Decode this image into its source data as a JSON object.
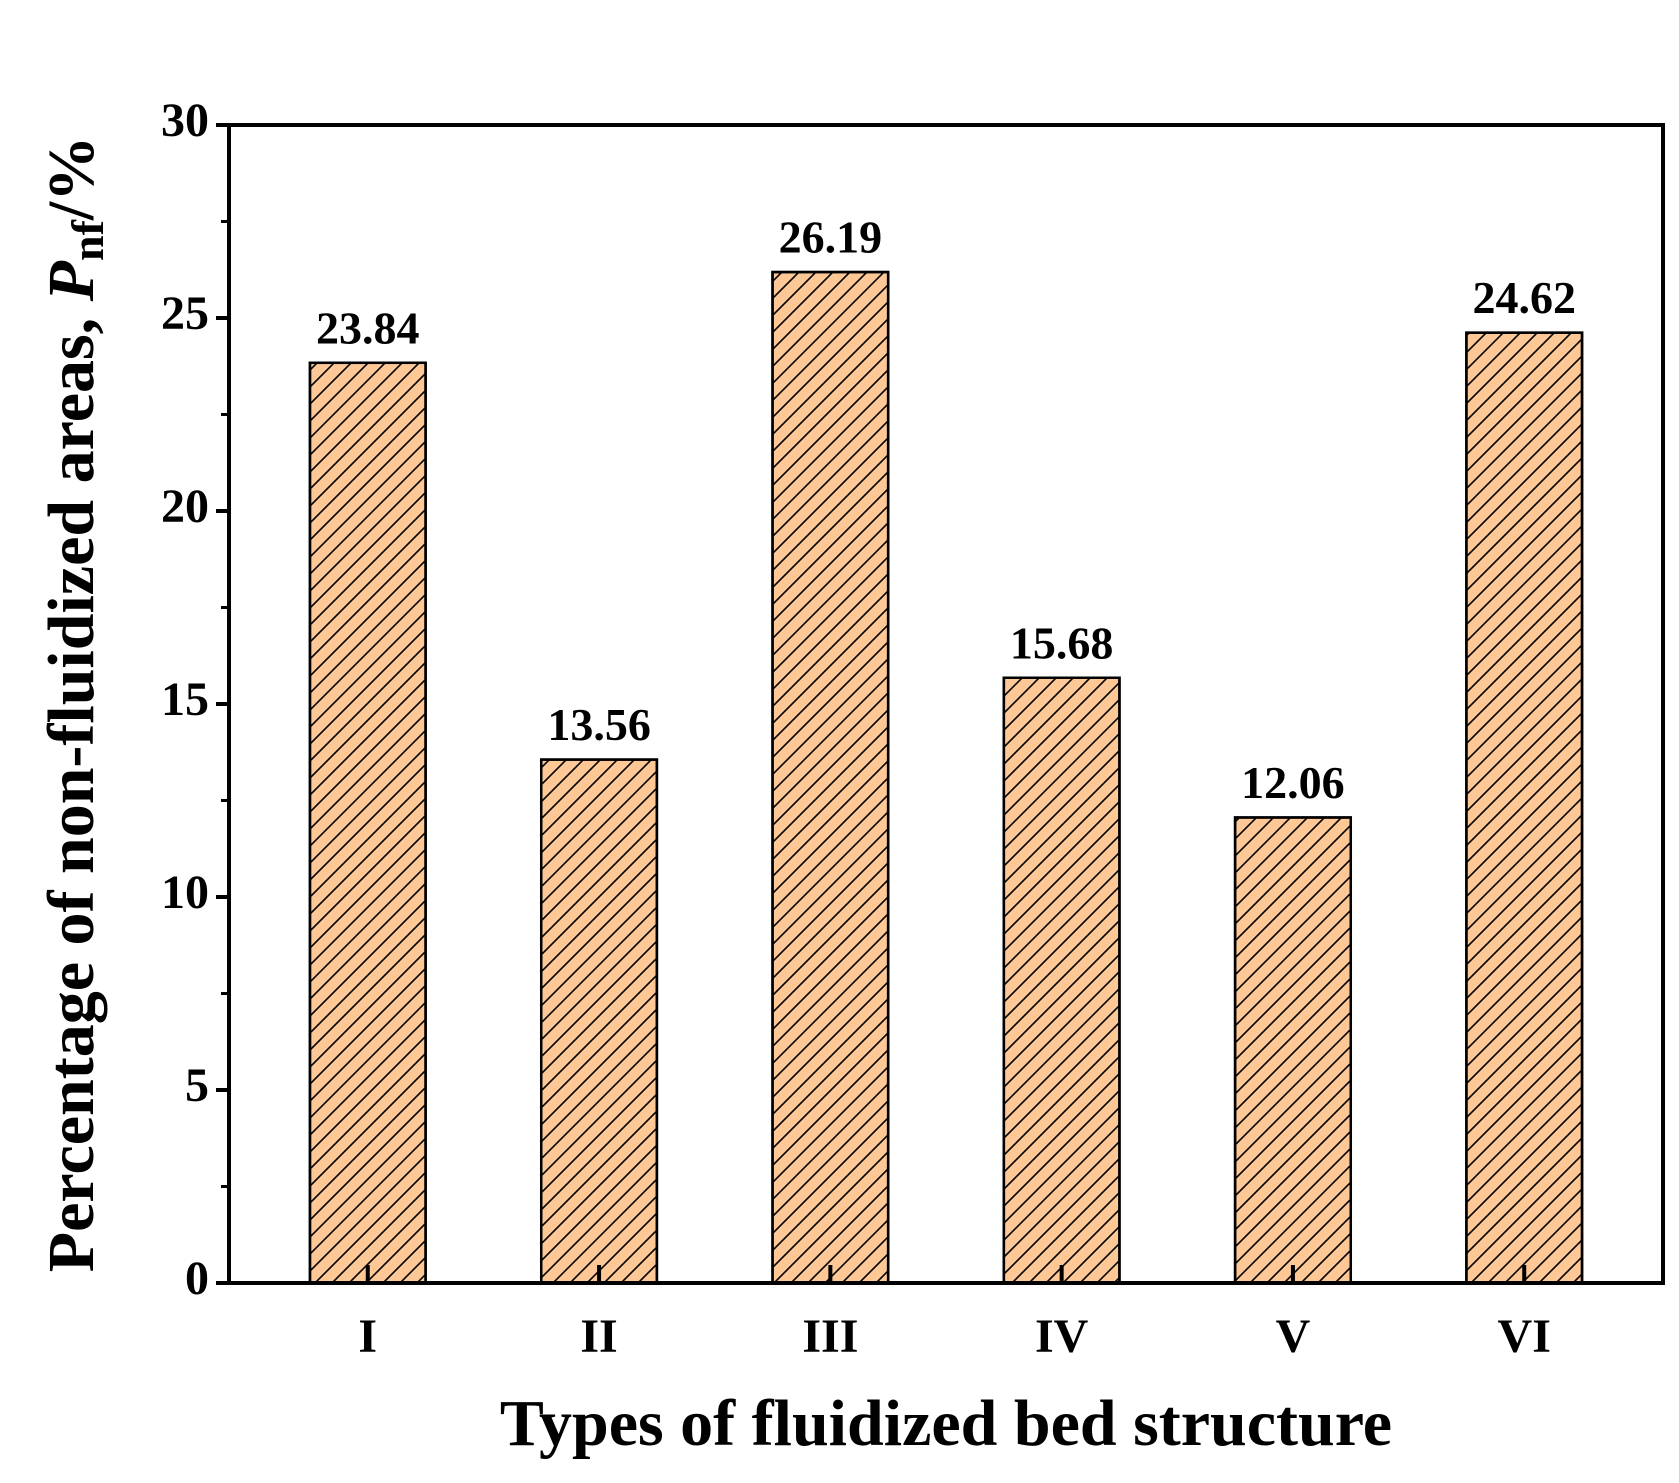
{
  "chart_data": {
    "type": "bar",
    "x_label": "Types of fluidized bed structure",
    "y_label": {
      "text": "Percentage of non-fluidized areas,",
      "symbol": "P",
      "subscript": "nf",
      "unit": "/%"
    },
    "categories": [
      "I",
      "II",
      "III",
      "IV",
      "V",
      "VI"
    ],
    "values": [
      23.84,
      13.56,
      26.19,
      15.68,
      12.06,
      24.62
    ],
    "color": "#fdc896",
    "hatch": "/",
    "ylim": [
      0,
      30
    ],
    "yticks": [
      0,
      5,
      10,
      15,
      20,
      25,
      30
    ],
    "y_minor_ticks": [
      2.5,
      7.5,
      12.5,
      17.5,
      22.5,
      27.5
    ],
    "grid": false
  }
}
